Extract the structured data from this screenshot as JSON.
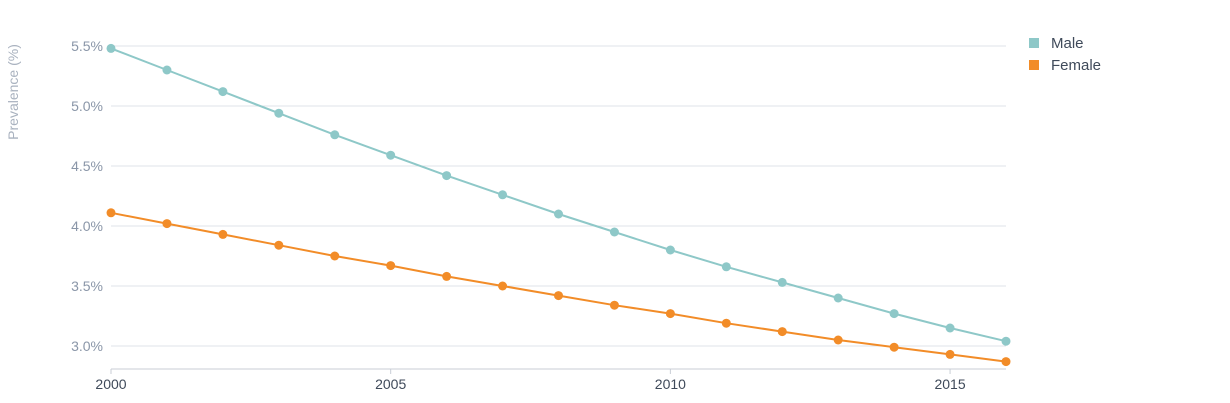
{
  "chart_data": {
    "type": "line",
    "ylabel": "Prevalence (%)",
    "x": [
      2000,
      2001,
      2002,
      2003,
      2004,
      2005,
      2006,
      2007,
      2008,
      2009,
      2010,
      2011,
      2012,
      2013,
      2014,
      2015,
      2016
    ],
    "x_ticks": [
      2000,
      2005,
      2010,
      2015
    ],
    "y_ticks": [
      3.0,
      3.5,
      4.0,
      4.5,
      5.0,
      5.5
    ],
    "y_tick_labels": [
      "3.0%",
      "3.5%",
      "4.0%",
      "4.5%",
      "5.0%",
      "5.5%"
    ],
    "ylim": [
      2.8,
      5.55
    ],
    "xlim": [
      2000,
      2016
    ],
    "grid": true,
    "legend_position": "top-right",
    "series": [
      {
        "name": "Male",
        "color": "#8ec8c8",
        "values": [
          5.48,
          5.3,
          5.12,
          4.94,
          4.76,
          4.59,
          4.42,
          4.26,
          4.1,
          3.95,
          3.8,
          3.66,
          3.53,
          3.4,
          3.27,
          3.15,
          3.04
        ]
      },
      {
        "name": "Female",
        "color": "#f28c28",
        "values": [
          4.11,
          4.02,
          3.93,
          3.84,
          3.75,
          3.67,
          3.58,
          3.5,
          3.42,
          3.34,
          3.27,
          3.19,
          3.12,
          3.05,
          2.99,
          2.93,
          2.87
        ]
      }
    ]
  }
}
